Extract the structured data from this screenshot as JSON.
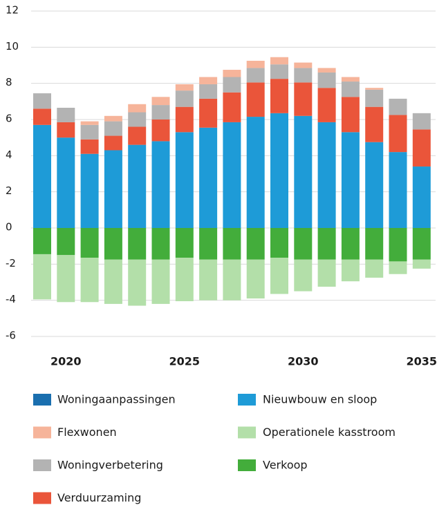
{
  "chart_data": {
    "type": "stacked_bar",
    "categories": [
      null,
      "2020",
      null,
      null,
      null,
      null,
      "2025",
      null,
      null,
      null,
      null,
      "2030",
      null,
      null,
      null,
      null,
      "2035"
    ],
    "ylim": [
      -6,
      12
    ],
    "yticks": [
      -6,
      -4,
      -2,
      0,
      2,
      4,
      6,
      8,
      10,
      12
    ],
    "grid": true,
    "series": [
      {
        "name": "Woningaanpassingen",
        "color": "#1a6faf",
        "values": [
          0,
          0,
          0,
          0,
          0,
          0,
          0,
          0,
          0,
          0,
          0,
          0,
          0,
          0,
          0,
          0,
          0
        ]
      },
      {
        "name": "Flexwonen",
        "color": "#f6b49a",
        "values": [
          0,
          0,
          0.2,
          0.3,
          0.45,
          0.45,
          0.35,
          0.4,
          0.4,
          0.4,
          0.4,
          0.3,
          0.25,
          0.25,
          0.1,
          0,
          0
        ]
      },
      {
        "name": "Woningverbetering",
        "color": "#b3b3b3",
        "values": [
          0.85,
          0.8,
          0.8,
          0.8,
          0.8,
          0.8,
          0.9,
          0.8,
          0.85,
          0.8,
          0.8,
          0.8,
          0.85,
          0.85,
          0.95,
          0.9,
          0.9
        ]
      },
      {
        "name": "Verduurzaming",
        "color": "#ea553a",
        "values": [
          0.9,
          0.85,
          0.8,
          0.8,
          1.0,
          1.2,
          1.4,
          1.6,
          1.65,
          1.9,
          1.9,
          1.85,
          1.9,
          1.95,
          1.95,
          2.05,
          2.05
        ]
      },
      {
        "name": "Nieuwbouw en sloop",
        "color": "#1e9bd7",
        "values": [
          5.7,
          5.0,
          4.1,
          4.3,
          4.6,
          4.8,
          5.3,
          5.55,
          5.85,
          6.15,
          6.35,
          6.2,
          5.85,
          5.3,
          4.75,
          4.2,
          3.4
        ]
      },
      {
        "name": "Operationele kasstroom",
        "color": "#b3dfa9",
        "values": [
          -2.5,
          -2.6,
          -2.45,
          -2.45,
          -2.55,
          -2.45,
          -2.4,
          -2.25,
          -2.25,
          -2.15,
          -2.0,
          -1.75,
          -1.5,
          -1.2,
          -1.0,
          -0.7,
          -0.5
        ]
      },
      {
        "name": "Verkoop",
        "color": "#43ad3b",
        "values": [
          -1.45,
          -1.5,
          -1.65,
          -1.75,
          -1.75,
          -1.75,
          -1.65,
          -1.75,
          -1.75,
          -1.75,
          -1.65,
          -1.75,
          -1.75,
          -1.75,
          -1.75,
          -1.85,
          -1.75
        ]
      }
    ]
  }
}
